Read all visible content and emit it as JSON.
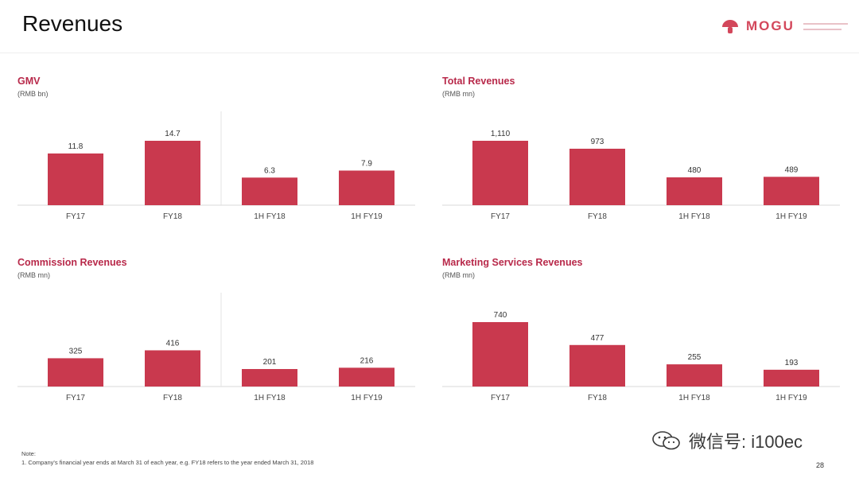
{
  "slide": {
    "title": "Revenues",
    "logo_text": "MOGU",
    "page_number": "28",
    "note_label": "Note:",
    "note_text": "1. Company's financial year ends at March 31 of each year, e.g. FY18 refers to the year ended March 31, 2018",
    "watermark_text": "微信号: i100ec",
    "accent_color": "#c9394e",
    "title_color": "#b8294a",
    "logo_color": "#d3475b"
  },
  "chart_data": [
    {
      "type": "bar",
      "title": "GMV",
      "unit": "(RMB bn)",
      "categories": [
        "FY17",
        "FY18",
        "1H FY18",
        "1H FY19"
      ],
      "values": [
        11.8,
        14.7,
        6.3,
        7.9
      ],
      "value_labels": [
        "11.8",
        "14.7",
        "6.3",
        "7.9"
      ],
      "ylim": [
        0,
        14.7
      ],
      "divider_between": [
        1,
        2
      ],
      "grid": false
    },
    {
      "type": "bar",
      "title": "Total Revenues",
      "unit": "(RMB mn)",
      "categories": [
        "FY17",
        "FY18",
        "1H FY18",
        "1H FY19"
      ],
      "values": [
        1110,
        973,
        480,
        489
      ],
      "value_labels": [
        "1,110",
        "973",
        "480",
        "489"
      ],
      "ylim": [
        0,
        1110
      ],
      "divider_between": null,
      "grid": false
    },
    {
      "type": "bar",
      "title": "Commission Revenues",
      "unit": "(RMB mn)",
      "categories": [
        "FY17",
        "FY18",
        "1H FY18",
        "1H FY19"
      ],
      "values": [
        325,
        416,
        201,
        216
      ],
      "value_labels": [
        "325",
        "416",
        "201",
        "216"
      ],
      "ylim": [
        0,
        740
      ],
      "divider_between": [
        1,
        2
      ],
      "grid": false
    },
    {
      "type": "bar",
      "title": "Marketing Services Revenues",
      "unit": "(RMB mn)",
      "categories": [
        "FY17",
        "FY18",
        "1H FY18",
        "1H FY19"
      ],
      "values": [
        740,
        477,
        255,
        193
      ],
      "value_labels": [
        "740",
        "477",
        "255",
        "193"
      ],
      "ylim": [
        0,
        740
      ],
      "divider_between": null,
      "grid": false
    }
  ]
}
